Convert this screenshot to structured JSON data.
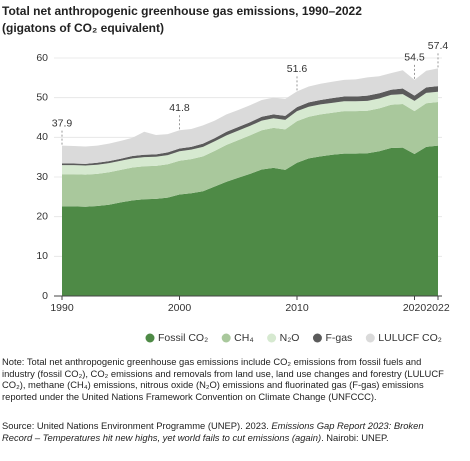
{
  "chart_data": {
    "type": "stacked-area",
    "title": "Total net anthropogenic greenhouse gas emissions, 1990–2022",
    "subtitle": "(gigatons of CO₂ equivalent)",
    "x": [
      1990,
      1991,
      1992,
      1993,
      1994,
      1995,
      1996,
      1997,
      1998,
      1999,
      2000,
      2001,
      2002,
      2003,
      2004,
      2005,
      2006,
      2007,
      2008,
      2009,
      2010,
      2011,
      2012,
      2013,
      2014,
      2015,
      2016,
      2017,
      2018,
      2019,
      2020,
      2021,
      2022
    ],
    "xlim": [
      1990,
      2022
    ],
    "xticks": [
      1990,
      2000,
      2010,
      2020,
      2022
    ],
    "ylim": [
      0,
      60
    ],
    "yticks": [
      0,
      10,
      20,
      30,
      40,
      50,
      60
    ],
    "grid": true,
    "legend": "bottom",
    "series": [
      {
        "name": "Fossil CO₂",
        "color": "#4e8a46",
        "values": [
          22.6,
          22.6,
          22.5,
          22.7,
          23.0,
          23.6,
          24.1,
          24.4,
          24.5,
          24.8,
          25.6,
          25.9,
          26.4,
          27.6,
          28.8,
          29.8,
          30.8,
          31.9,
          32.3,
          31.8,
          33.6,
          34.7,
          35.2,
          35.6,
          35.9,
          35.9,
          36.0,
          36.5,
          37.3,
          37.4,
          35.8,
          37.6,
          37.9
        ]
      },
      {
        "name": "CH₄",
        "color": "#a9c89c",
        "values": [
          8.1,
          8.1,
          8.1,
          8.1,
          8.2,
          8.2,
          8.3,
          8.3,
          8.3,
          8.4,
          8.5,
          8.6,
          8.8,
          9.0,
          9.3,
          9.5,
          9.7,
          9.9,
          10.1,
          10.2,
          10.5,
          10.5,
          10.6,
          10.6,
          10.7,
          10.7,
          10.7,
          10.8,
          10.9,
          11.0,
          10.8,
          11.0,
          11.0
        ]
      },
      {
        "name": "N₂O",
        "color": "#d6e9d0",
        "values": [
          2.3,
          2.3,
          2.3,
          2.3,
          2.3,
          2.3,
          2.3,
          2.3,
          2.3,
          2.3,
          2.4,
          2.4,
          2.4,
          2.4,
          2.4,
          2.4,
          2.4,
          2.4,
          2.4,
          2.4,
          2.5,
          2.5,
          2.5,
          2.5,
          2.5,
          2.5,
          2.5,
          2.5,
          2.5,
          2.5,
          2.6,
          2.6,
          2.6
        ]
      },
      {
        "name": "F-gas",
        "color": "#5b5b5b",
        "values": [
          0.4,
          0.4,
          0.4,
          0.5,
          0.5,
          0.5,
          0.6,
          0.6,
          0.6,
          0.7,
          0.7,
          0.7,
          0.8,
          0.8,
          0.9,
          0.9,
          0.9,
          1.0,
          1.0,
          1.0,
          1.0,
          1.1,
          1.1,
          1.2,
          1.2,
          1.2,
          1.3,
          1.3,
          1.3,
          1.4,
          1.3,
          1.4,
          1.4
        ]
      },
      {
        "name": "LULUCF CO₂",
        "color": "#dadada",
        "values": [
          4.5,
          4.4,
          4.4,
          4.3,
          4.4,
          4.5,
          4.6,
          5.8,
          4.9,
          4.6,
          4.6,
          4.5,
          4.6,
          4.4,
          4.4,
          4.3,
          4.3,
          4.2,
          4.2,
          4.3,
          4.0,
          4.0,
          4.1,
          4.1,
          4.2,
          4.3,
          4.6,
          4.3,
          4.2,
          4.6,
          4.0,
          4.2,
          4.5
        ]
      }
    ],
    "total_labels": [
      {
        "x": 1990,
        "value": 37.9
      },
      {
        "x": 2000,
        "value": 41.8
      },
      {
        "x": 2010,
        "value": 51.6
      },
      {
        "x": 2020,
        "value": 54.5
      },
      {
        "x": 2022,
        "value": 57.4
      }
    ],
    "note": "Note: Total net anthropogenic greenhouse gas emissions include CO₂ emissions from fossil fuels and industry (fossil CO₂), CO₂ emissions and removals from land use, land use changes and forestry (LULUCF CO₂), methane (CH₄) emissions, nitrous oxide (N₂O) emissions and fluorinated gas (F-gas) emissions reported under the United Nations Framework Convention on Climate Change (UNFCCC).",
    "source": {
      "lead": "Source: United Nations Environment Programme (UNEP). 2023. ",
      "italic": "Emissions Gap Report 2023: Broken Record – Temperatures hit new highs, yet world fails to cut emissions (again)",
      "tail": ". Nairobi: UNEP."
    }
  }
}
